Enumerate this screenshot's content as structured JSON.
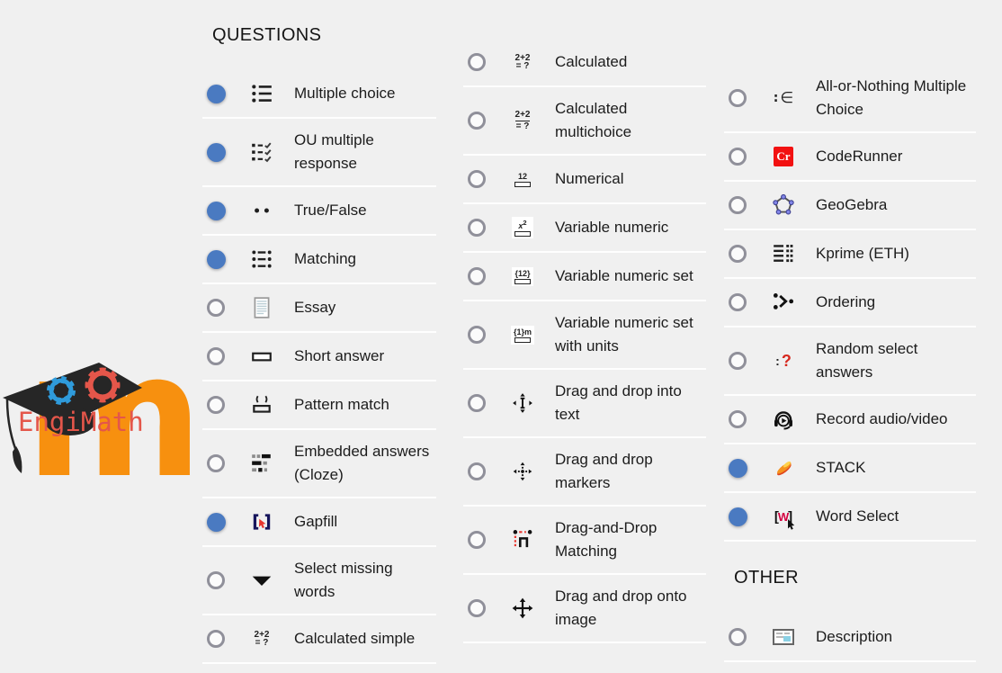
{
  "groups": {
    "questions": {
      "title": "QUESTIONS",
      "columns": [
        [
          {
            "label": "Multiple choice",
            "selected": true,
            "icon": "multiple-choice-icon"
          },
          {
            "label": "OU multiple response",
            "selected": true,
            "icon": "ou-multiple-response-icon"
          },
          {
            "label": "True/False",
            "selected": true,
            "icon": "true-false-icon"
          },
          {
            "label": "Matching",
            "selected": true,
            "icon": "matching-icon"
          },
          {
            "label": "Essay",
            "selected": false,
            "icon": "essay-icon"
          },
          {
            "label": "Short answer",
            "selected": false,
            "icon": "short-answer-icon"
          },
          {
            "label": "Pattern match",
            "selected": false,
            "icon": "pattern-match-icon"
          },
          {
            "label": "Embedded answers (Cloze)",
            "selected": false,
            "icon": "cloze-icon"
          },
          {
            "label": "Gapfill",
            "selected": true,
            "icon": "gapfill-icon"
          },
          {
            "label": "Select missing words",
            "selected": false,
            "icon": "select-missing-words-icon"
          },
          {
            "label": "Calculated simple",
            "selected": false,
            "icon": "calculated-simple-icon"
          }
        ],
        [
          {
            "label": "Calculated",
            "selected": false,
            "icon": "calculated-icon"
          },
          {
            "label": "Calculated multichoice",
            "selected": false,
            "icon": "calculated-multichoice-icon"
          },
          {
            "label": "Numerical",
            "selected": false,
            "icon": "numerical-icon"
          },
          {
            "label": "Variable numeric",
            "selected": false,
            "icon": "variable-numeric-icon"
          },
          {
            "label": "Variable numeric set",
            "selected": false,
            "icon": "variable-numeric-set-icon"
          },
          {
            "label": "Variable numeric set with units",
            "selected": false,
            "icon": "variable-numeric-set-units-icon"
          },
          {
            "label": "Drag and drop into text",
            "selected": false,
            "icon": "drag-drop-text-icon"
          },
          {
            "label": "Drag and drop markers",
            "selected": false,
            "icon": "drag-drop-markers-icon"
          },
          {
            "label": "Drag-and-Drop Matching",
            "selected": false,
            "icon": "drag-drop-matching-icon"
          },
          {
            "label": "Drag and drop onto image",
            "selected": false,
            "icon": "drag-drop-image-icon"
          }
        ],
        [
          {
            "label": "All-or-Nothing Multiple Choice",
            "selected": false,
            "icon": "all-or-nothing-icon"
          },
          {
            "label": "CodeRunner",
            "selected": false,
            "icon": "coderunner-icon"
          },
          {
            "label": "GeoGebra",
            "selected": false,
            "icon": "geogebra-icon"
          },
          {
            "label": "Kprime (ETH)",
            "selected": false,
            "icon": "kprime-icon"
          },
          {
            "label": "Ordering",
            "selected": false,
            "icon": "ordering-icon"
          },
          {
            "label": "Random select answers",
            "selected": false,
            "icon": "random-select-icon"
          },
          {
            "label": "Record audio/video",
            "selected": false,
            "icon": "record-av-icon"
          },
          {
            "label": "STACK",
            "selected": true,
            "icon": "stack-icon"
          },
          {
            "label": "Word Select",
            "selected": true,
            "icon": "word-select-icon"
          }
        ]
      ]
    },
    "other": {
      "title": "OTHER",
      "items": [
        {
          "label": "Description",
          "selected": false,
          "icon": "description-icon"
        }
      ]
    }
  },
  "logos": {
    "moodle_letter": "m",
    "engimath_text": "EngiMath"
  },
  "icon_labels": {
    "coderunner_badge": "Cr",
    "word_select_letter": "W",
    "calc_top": "2+2",
    "calc_bottom": "= ?",
    "numerical_top": "12",
    "variable_numeric_set_top": "{12}",
    "variable_numeric_set_units_top": "{1}m"
  },
  "colors": {
    "bg": "#f0f0f0",
    "text": "#1c1c1c",
    "radio-selected": "#4a7ac1",
    "moodle-orange": "#f7900f",
    "engimath-red": "#e4564a",
    "engimath-blue": "#2f9bdb",
    "coderunner-red": "#f21111",
    "accent-red": "#d6281e",
    "gapfill-navy": "#16155c",
    "word-select-red": "#d3003f",
    "geogebra-blue": "#8286e8",
    "description-blue": "#8ad0e4"
  }
}
